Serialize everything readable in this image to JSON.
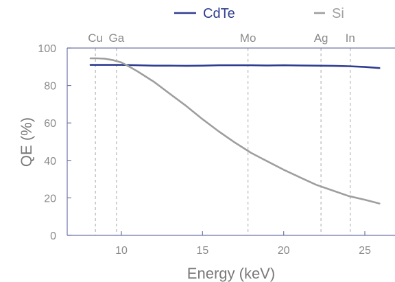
{
  "chart_data": {
    "type": "line",
    "xlabel": "Energy (keV)",
    "ylabel": "QE (%)",
    "xlim": [
      7,
      26.5
    ],
    "ylim": [
      0,
      100
    ],
    "xticks": [
      10,
      15,
      20,
      25
    ],
    "yticks": [
      0,
      20,
      40,
      60,
      80,
      100
    ],
    "grid": false,
    "legend_position": "top",
    "series": [
      {
        "name": "CdTe",
        "color": "#2e3d8f",
        "x": [
          8.1,
          9,
          10,
          11,
          12,
          13,
          14,
          15,
          16,
          17,
          18,
          19,
          20,
          21,
          22,
          23,
          24,
          25,
          25.9
        ],
        "y": [
          91,
          91,
          91,
          90.8,
          90.6,
          90.6,
          90.5,
          90.6,
          90.8,
          90.8,
          90.8,
          90.7,
          90.8,
          90.7,
          90.6,
          90.5,
          90.3,
          89.9,
          89.3
        ]
      },
      {
        "name": "Si",
        "color": "#9e9e9e",
        "x": [
          8.1,
          8.5,
          9,
          9.5,
          10,
          10.5,
          11,
          12,
          13,
          14,
          15,
          16,
          17,
          18,
          19,
          20,
          21,
          22,
          23,
          24,
          25,
          25.9
        ],
        "y": [
          94.5,
          94.5,
          94.3,
          93.5,
          92.3,
          90,
          87.5,
          82,
          75.5,
          69,
          62,
          55.5,
          49.5,
          44,
          39.5,
          35,
          31,
          27,
          24,
          21,
          19,
          17
        ]
      }
    ],
    "absorption_edges": [
      {
        "label": "Cu",
        "x": 8.4
      },
      {
        "label": "Ga",
        "x": 9.7
      },
      {
        "label": "Mo",
        "x": 17.8
      },
      {
        "label": "Ag",
        "x": 22.3
      },
      {
        "label": "In",
        "x": 24.1
      }
    ]
  }
}
